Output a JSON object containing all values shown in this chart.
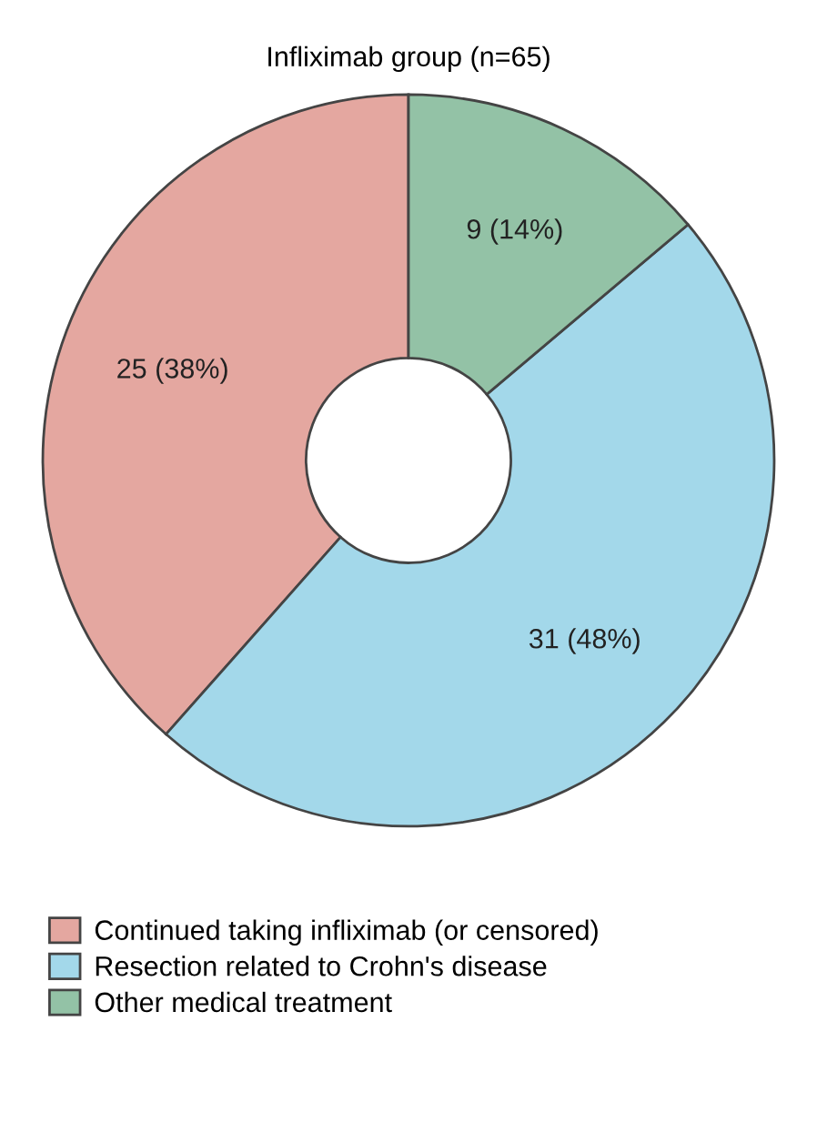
{
  "chart_data": {
    "type": "donut",
    "title": "Infliximab group (n=65)",
    "categories": [
      "Continued taking infliximab (or censored)",
      "Resection related to Crohn's disease",
      "Other medical treatment"
    ],
    "values": [
      25,
      31,
      9
    ],
    "value_labels": [
      "25 (38%)",
      "31 (48%)",
      "9 (14%)"
    ],
    "colors": [
      "#e4a7a0",
      "#a3d8ea",
      "#93c2a6"
    ],
    "legend": "bottom"
  }
}
